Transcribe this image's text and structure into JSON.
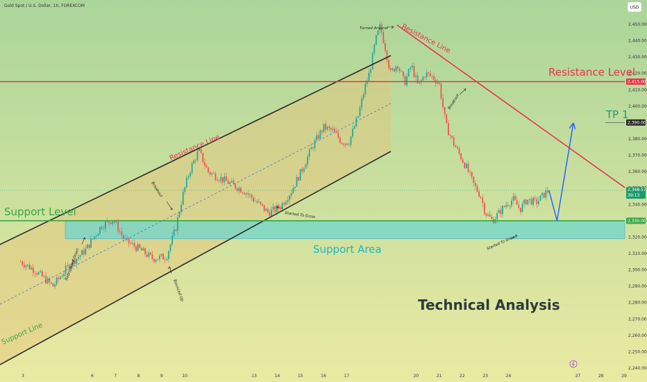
{
  "header": {
    "symbol_title": "Gold Spot / U.S. Dollar, 1h, FOREXCOM",
    "currency_button": "USD"
  },
  "labels": {
    "resistance_level": "Resistance Level",
    "support_level": "Support Level",
    "support_area": "Support Area",
    "tp1": "TP 1",
    "resistance_line_channel": "Resistance Line",
    "resistance_line_trend": "Resistance Line",
    "support_line": "Support Line",
    "technical_analysis": "Technical Analysis",
    "turned_around": "Turned Around",
    "breakout_channel": "Breakout",
    "breakout_trend": "Breakout",
    "rebounded_down": "Rebounded Down",
    "bounced_up": "Bounced Up",
    "started_to_grow_channel": "Started To Grow",
    "started_to_grow_support": "Started To Grow"
  },
  "price_tags": {
    "resistance": "2,415.00",
    "tp1": "2,390.00",
    "current_price": "2,348.57",
    "countdown": "39:13",
    "support": "2,330.00"
  },
  "colors": {
    "background_top": "#aad59a",
    "background_bottom": "#eaeaa2",
    "resistance_red": "#e8334a",
    "support_green": "#3aa546",
    "support_area_fill": "#6fd6cc",
    "support_area_label": "#1fb5c4",
    "channel_line": "#2b2b2b",
    "arrow_blue": "#2962ff",
    "tp_label": "#1f9b78",
    "candle_up": "#26a69a",
    "candle_down": "#ef5350",
    "current_price_tag": "#1d9a6c"
  },
  "chart_data": {
    "type": "candlestick",
    "title": "Gold Spot / U.S. Dollar, 1h, FOREXCOM",
    "currency": "USD",
    "y_axis": {
      "ticks": [
        "2,240.00",
        "2,250.00",
        "2,260.00",
        "2,270.00",
        "2,280.00",
        "2,290.00",
        "2,300.00",
        "2,310.00",
        "2,320.00",
        "2,330.00",
        "2,340.00",
        "2,350.00",
        "2,360.00",
        "2,370.00",
        "2,380.00",
        "2,390.00",
        "2,400.00",
        "2,410.00",
        "2,420.00",
        "2,430.00",
        "2,440.00",
        "2,450.00"
      ],
      "range": [
        2240,
        2456
      ]
    },
    "x_axis": {
      "ticks": [
        "3",
        "6",
        "7",
        "8",
        "9",
        "10",
        "13",
        "14",
        "15",
        "16",
        "17",
        "20",
        "21",
        "22",
        "23",
        "24",
        "27",
        "28",
        "29"
      ],
      "tick_days": [
        3,
        6,
        7,
        8,
        9,
        10,
        13,
        14,
        15,
        16,
        17,
        20,
        21,
        22,
        23,
        24,
        27,
        28,
        29
      ]
    },
    "grid": false,
    "horizontal_levels": [
      {
        "name": "Resistance Level",
        "price": 2415
      },
      {
        "name": "Support Level",
        "price": 2330
      },
      {
        "name": "TP 1",
        "price": 2390
      }
    ],
    "support_area": {
      "price_low": 2319,
      "price_high": 2330
    },
    "current_price": 2348.57,
    "price_path": [
      {
        "day": 2.9,
        "price": 2305
      },
      {
        "day": 3.5,
        "price": 2300
      },
      {
        "day": 4.3,
        "price": 2290
      },
      {
        "day": 5.0,
        "price": 2303
      },
      {
        "day": 5.7,
        "price": 2312
      },
      {
        "day": 6.4,
        "price": 2327
      },
      {
        "day": 6.9,
        "price": 2331
      },
      {
        "day": 7.4,
        "price": 2318
      },
      {
        "day": 8.0,
        "price": 2313
      },
      {
        "day": 8.6,
        "price": 2307
      },
      {
        "day": 9.2,
        "price": 2308
      },
      {
        "day": 9.6,
        "price": 2325
      },
      {
        "day": 9.9,
        "price": 2345
      },
      {
        "day": 10.2,
        "price": 2360
      },
      {
        "day": 10.6,
        "price": 2373
      },
      {
        "day": 11.0,
        "price": 2360
      },
      {
        "day": 12.6,
        "price": 2348
      },
      {
        "day": 13.6,
        "price": 2335
      },
      {
        "day": 14.1,
        "price": 2338
      },
      {
        "day": 14.6,
        "price": 2348
      },
      {
        "day": 15.1,
        "price": 2362
      },
      {
        "day": 15.5,
        "price": 2375
      },
      {
        "day": 16.0,
        "price": 2387
      },
      {
        "day": 16.4,
        "price": 2385
      },
      {
        "day": 16.8,
        "price": 2378
      },
      {
        "day": 17.1,
        "price": 2378
      },
      {
        "day": 17.5,
        "price": 2394
      },
      {
        "day": 17.8,
        "price": 2412
      },
      {
        "day": 18.0,
        "price": 2421
      },
      {
        "day": 18.25,
        "price": 2440
      },
      {
        "day": 18.45,
        "price": 2449
      },
      {
        "day": 18.65,
        "price": 2437
      },
      {
        "day": 18.9,
        "price": 2420
      },
      {
        "day": 19.2,
        "price": 2426
      },
      {
        "day": 19.5,
        "price": 2414
      },
      {
        "day": 19.8,
        "price": 2425
      },
      {
        "day": 20.1,
        "price": 2412
      },
      {
        "day": 20.4,
        "price": 2420
      },
      {
        "day": 20.7,
        "price": 2418
      },
      {
        "day": 21.0,
        "price": 2414
      },
      {
        "day": 21.3,
        "price": 2388
      },
      {
        "day": 21.6,
        "price": 2378
      },
      {
        "day": 21.9,
        "price": 2370
      },
      {
        "day": 22.2,
        "price": 2362
      },
      {
        "day": 22.5,
        "price": 2352
      },
      {
        "day": 22.8,
        "price": 2345
      },
      {
        "day": 23.0,
        "price": 2335
      },
      {
        "day": 23.3,
        "price": 2330
      },
      {
        "day": 23.6,
        "price": 2335
      },
      {
        "day": 23.9,
        "price": 2340
      },
      {
        "day": 24.2,
        "price": 2343
      },
      {
        "day": 24.5,
        "price": 2337
      },
      {
        "day": 24.8,
        "price": 2343
      },
      {
        "day": 25.2,
        "price": 2341
      },
      {
        "day": 25.6,
        "price": 2347
      },
      {
        "day": 25.75,
        "price": 2348.57
      }
    ],
    "projection": [
      {
        "day": 25.75,
        "price": 2348.57
      },
      {
        "day": 26.1,
        "price": 2330
      },
      {
        "day": 26.8,
        "price": 2389
      }
    ]
  }
}
